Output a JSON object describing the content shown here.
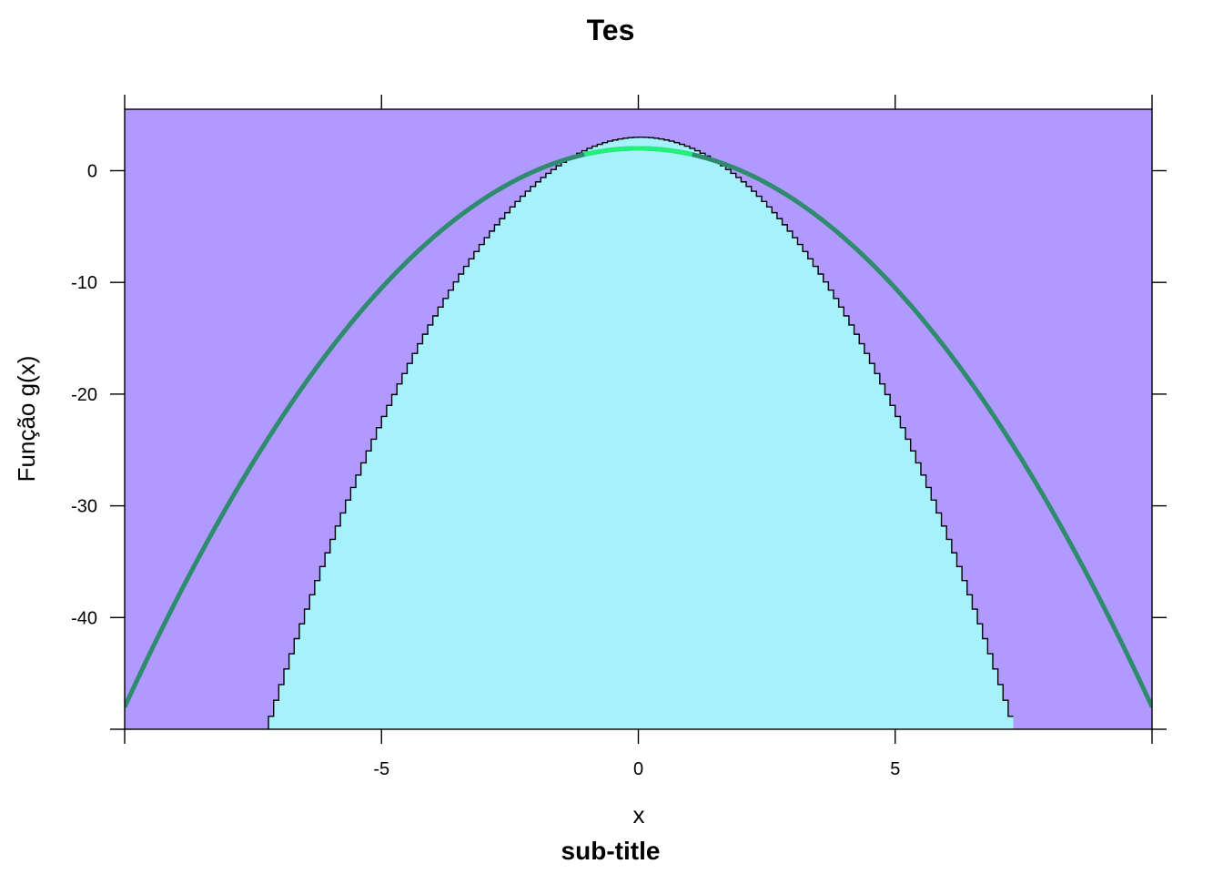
{
  "chart_data": {
    "type": "area",
    "title": "Tes",
    "subtitle": "sub-title",
    "xlabel": "x",
    "ylabel": "Função g(x)",
    "xlim": [
      -10,
      10
    ],
    "ylim": [
      -50,
      5.5
    ],
    "x_ticks": [
      -5,
      0,
      5
    ],
    "x_tick_labels": [
      "-5",
      "0",
      "5"
    ],
    "y_ticks": [
      0,
      -10,
      -20,
      -30,
      -40
    ],
    "y_tick_labels": [
      "0",
      "-10",
      "-20",
      "-30",
      "-40"
    ],
    "grid": false,
    "background_color": "#b09aff",
    "fill_color": "#a6f2fc",
    "series": [
      {
        "role": "filled-step-area",
        "color": "#000000",
        "fill": "#a6f2fc",
        "formula_y": "3 - x^2",
        "x_range": [
          -7.2,
          7.2
        ],
        "step": 0.1
      },
      {
        "role": "curve",
        "color": "#2e8b6e",
        "highlight_color": "#22f07a",
        "formula_y": "2 - 0.5*x^2",
        "x_range": [
          -10,
          10
        ]
      }
    ]
  }
}
